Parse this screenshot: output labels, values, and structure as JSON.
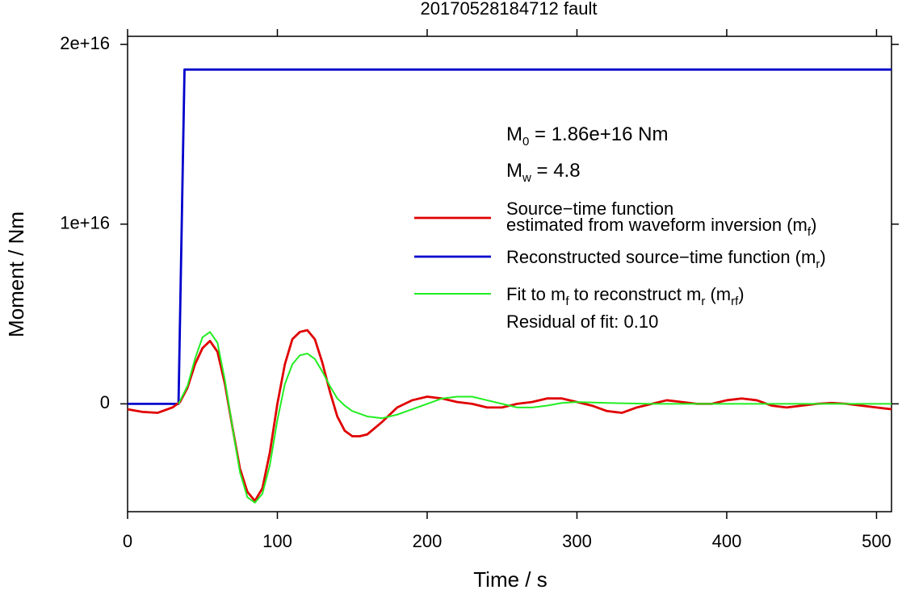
{
  "chart_data": {
    "type": "line",
    "title": "20170528184712 fault",
    "xlabel": "Time / s",
    "ylabel": "Moment / Nm",
    "xlim": [
      0,
      510
    ],
    "ylim": [
      -6000000000000000.0,
      2.045e+16
    ],
    "xticks": [
      0,
      100,
      200,
      300,
      400,
      500
    ],
    "yticks": [
      0,
      {
        "value": 1e+16,
        "label": "1e+16"
      },
      {
        "value": 2e+16,
        "label": "2e+16"
      }
    ],
    "annotations": [
      [
        "M",
        {
          "sub": "0"
        },
        " = 1.86e+16 Nm"
      ],
      [
        "M",
        {
          "sub": "w"
        },
        " = 4.8"
      ],
      [
        "Residual of fit: 0.10"
      ]
    ],
    "series": [
      {
        "name": [
          [
            "Source−time function"
          ],
          [
            "estimated from waveform inversion (m",
            {
              "sub": "f"
            },
            ")"
          ]
        ],
        "color": "#e00000",
        "x": [
          0,
          10,
          20,
          30,
          35,
          40,
          45,
          50,
          55,
          60,
          65,
          70,
          75,
          80,
          85,
          90,
          95,
          100,
          105,
          110,
          115,
          120,
          125,
          130,
          135,
          140,
          145,
          150,
          155,
          160,
          170,
          180,
          190,
          200,
          210,
          220,
          230,
          240,
          250,
          260,
          270,
          280,
          290,
          300,
          310,
          320,
          330,
          340,
          350,
          360,
          370,
          380,
          390,
          400,
          410,
          420,
          430,
          440,
          450,
          460,
          470,
          480,
          490,
          500,
          510
        ],
        "values": [
          -300000000000000.0,
          -450000000000000.0,
          -500000000000000.0,
          -200000000000000.0,
          100000000000000.0,
          900000000000000.0,
          2200000000000000.0,
          3100000000000000.0,
          3500000000000000.0,
          2900000000000000.0,
          1100000000000000.0,
          -1300000000000000.0,
          -3600000000000000.0,
          -4900000000000000.0,
          -5400000000000000.0,
          -4700000000000000.0,
          -2700000000000000.0,
          0,
          2200000000000000.0,
          3600000000000000.0,
          4000000000000000.0,
          4100000000000000.0,
          3600000000000000.0,
          2300000000000000.0,
          700000000000000.0,
          -700000000000000.0,
          -1500000000000000.0,
          -1800000000000000.0,
          -1800000000000000.0,
          -1700000000000000.0,
          -1000000000000000.0,
          -200000000000000.0,
          200000000000000.0,
          400000000000000.0,
          300000000000000.0,
          100000000000000.0,
          0,
          -200000000000000.0,
          -200000000000000.0,
          0,
          100000000000000.0,
          300000000000000.0,
          300000000000000.0,
          100000000000000.0,
          -100000000000000.0,
          -400000000000000.0,
          -500000000000000.0,
          -200000000000000.0,
          0,
          200000000000000.0,
          100000000000000.0,
          0,
          0,
          200000000000000.0,
          300000000000000.0,
          200000000000000.0,
          -100000000000000.0,
          -200000000000000.0,
          -100000000000000.0,
          0,
          50000000000000.0,
          0,
          -100000000000000.0,
          -200000000000000.0,
          -300000000000000.0
        ]
      },
      {
        "name": [
          [
            "Reconstructed source−time function (m",
            {
              "sub": "r"
            },
            ")"
          ]
        ],
        "color": "#0000cc",
        "x": [
          0,
          34,
          38,
          510
        ],
        "values": [
          0,
          0,
          1.86e+16,
          1.86e+16
        ]
      },
      {
        "name": [
          [
            "Fit to m",
            {
              "sub": "f"
            },
            " to reconstruct m",
            {
              "sub": "r"
            },
            " (m",
            {
              "sub": "rf"
            },
            ")"
          ]
        ],
        "color": "#22ee22",
        "x": [
          34,
          40,
          45,
          50,
          55,
          60,
          65,
          70,
          75,
          80,
          85,
          90,
          95,
          100,
          105,
          110,
          115,
          120,
          125,
          130,
          135,
          140,
          145,
          150,
          160,
          170,
          180,
          190,
          200,
          210,
          220,
          230,
          240,
          250,
          260,
          270,
          280,
          290,
          300,
          320,
          350,
          510
        ],
        "values": [
          0,
          1000000000000000.0,
          2500000000000000.0,
          3700000000000000.0,
          4000000000000000.0,
          3400000000000000.0,
          1300000000000000.0,
          -1300000000000000.0,
          -3800000000000000.0,
          -5200000000000000.0,
          -5500000000000000.0,
          -5000000000000000.0,
          -3400000000000000.0,
          -900000000000000.0,
          1100000000000000.0,
          2200000000000000.0,
          2700000000000000.0,
          2800000000000000.0,
          2500000000000000.0,
          1800000000000000.0,
          1000000000000000.0,
          300000000000000.0,
          -100000000000000.0,
          -400000000000000.0,
          -700000000000000.0,
          -800000000000000.0,
          -600000000000000.0,
          -300000000000000.0,
          0,
          300000000000000.0,
          400000000000000.0,
          400000000000000.0,
          200000000000000.0,
          0,
          -200000000000000.0,
          -200000000000000.0,
          -100000000000000.0,
          50000000000000.0,
          100000000000000.0,
          50000000000000.0,
          0,
          0
        ]
      }
    ]
  }
}
